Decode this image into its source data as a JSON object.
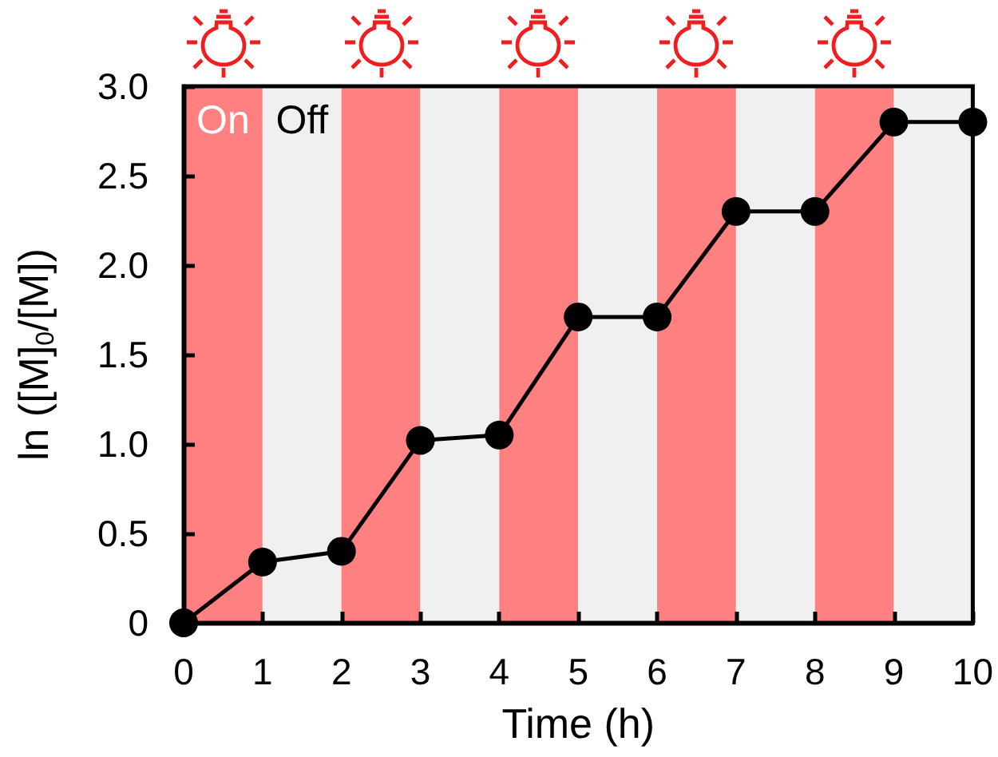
{
  "chart_data": {
    "type": "line",
    "xlabel": "Time (h)",
    "ylabel": "ln ([M]$_{0}$/[M])",
    "x": [
      0,
      1,
      2,
      3,
      4,
      5,
      6,
      7,
      8,
      9,
      10
    ],
    "values": [
      0,
      0.34,
      0.4,
      1.02,
      1.05,
      1.71,
      1.71,
      2.3,
      2.3,
      2.8,
      2.8
    ],
    "color": "#000000",
    "marker": "circle",
    "line_style": "solid",
    "xlim": [
      0,
      10
    ],
    "ylim": [
      0,
      3
    ],
    "xticks": [
      0,
      1,
      2,
      3,
      4,
      5,
      6,
      7,
      8,
      9,
      10
    ],
    "yticks": [
      0,
      0.5,
      {
        "value": 1,
        "label": "1.0"
      },
      1.5,
      {
        "value": 2,
        "label": "2.0"
      },
      2.5,
      {
        "value": 3,
        "label": "3.0"
      }
    ],
    "grid": false,
    "bands": [
      {
        "axis": "x",
        "from": 0,
        "to": 1,
        "label": "On",
        "color": "#ff8080"
      },
      {
        "axis": "x",
        "from": 1,
        "to": 2,
        "label": "Off",
        "color": "#f0f0f0"
      },
      {
        "axis": "x",
        "from": 2,
        "to": 3,
        "color": "#ff8080"
      },
      {
        "axis": "x",
        "from": 3,
        "to": 4,
        "color": "#f0f0f0"
      },
      {
        "axis": "x",
        "from": 4,
        "to": 5,
        "color": "#ff8080"
      },
      {
        "axis": "x",
        "from": 5,
        "to": 6,
        "color": "#f0f0f0"
      },
      {
        "axis": "x",
        "from": 6,
        "to": 7,
        "color": "#ff8080"
      },
      {
        "axis": "x",
        "from": 7,
        "to": 8,
        "color": "#f0f0f0"
      },
      {
        "axis": "x",
        "from": 8,
        "to": 9,
        "color": "#ff8080"
      },
      {
        "axis": "x",
        "from": 9,
        "to": 10,
        "color": "#f0f0f0"
      }
    ]
  }
}
